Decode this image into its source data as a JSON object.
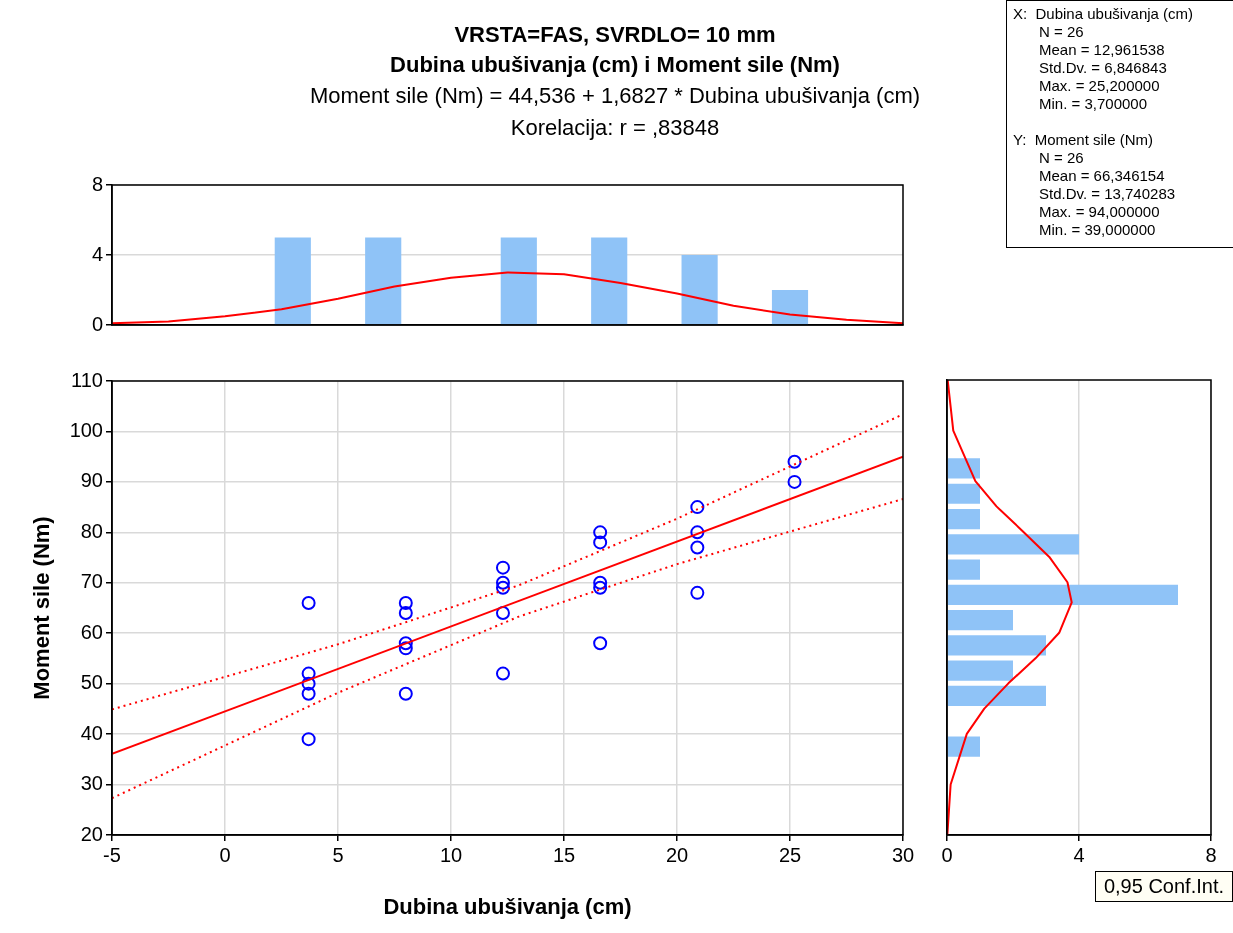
{
  "chart_data": [
    {
      "type": "bar",
      "title": "VRSTA=FAS, SVRDLO= 10 mm\nDubina ubušivanja (cm) i Moment sile (Nm)",
      "subtitle": "Moment sile (Nm) = 44,536 + 1,6827 * Dubina ubušivanja (cm)\nKorelacija: r = ,83848",
      "x": [
        3,
        7,
        13,
        17,
        21,
        25
      ],
      "values": [
        5,
        5,
        5,
        5,
        4,
        2
      ],
      "color": "#8fc3f7",
      "series": [
        {
          "type": "line",
          "color": "#ff0000",
          "marker": "none",
          "x": [
            -5,
            -2.5,
            0,
            2.5,
            5,
            7.5,
            10,
            12.5,
            15,
            17.5,
            20,
            22.5,
            25,
            27.5,
            30
          ],
          "values": [
            0.1,
            0.2,
            0.5,
            0.9,
            1.5,
            2.2,
            2.7,
            3.0,
            2.9,
            2.4,
            1.8,
            1.1,
            0.6,
            0.3,
            0.1
          ]
        }
      ],
      "xlim": [
        -5,
        30
      ],
      "xticks": [
        -5,
        0,
        5,
        10,
        15,
        20,
        25,
        30
      ],
      "ylim": [
        0,
        8
      ],
      "yticks": [
        0,
        4,
        8
      ],
      "tick_labels": "y",
      "grid": "y",
      "legend": false
    },
    {
      "type": "other",
      "annotations": [
        "X:  Dubina ubušivanja (cm)",
        "N = 26",
        "Mean = 12,961538",
        "Std.Dv. = 6,846843",
        "Max. = 25,200000",
        "Min. = 3,700000",
        "Y:  Moment sile (Nm)",
        "N = 26",
        "Mean = 66,346154",
        "Std.Dv. = 13,740283",
        "Max. = 94,000000",
        "Min. = 39,000000"
      ]
    },
    {
      "type": "scatter",
      "xlabel": "Dubina ubušivanja (cm)",
      "ylabel": "Moment sile (Nm)",
      "series": [
        {
          "type": "scatter",
          "color": "#0000ff",
          "marker": "circle",
          "x": [
            3.7,
            3.7,
            3.7,
            3.7,
            3.7,
            8,
            8,
            8,
            8,
            8,
            12.3,
            12.3,
            12.3,
            12.3,
            12.3,
            16.6,
            16.6,
            16.6,
            16.6,
            16.6,
            20.9,
            20.9,
            20.9,
            20.9,
            25.2,
            25.2
          ],
          "values": [
            66,
            52,
            50,
            48,
            39,
            66,
            64,
            58,
            57,
            48,
            73,
            70,
            69,
            64,
            52,
            80,
            78,
            70,
            69,
            58,
            85,
            80,
            77,
            68,
            94,
            90
          ]
        },
        {
          "type": "line",
          "color": "#ff0000",
          "marker": "none",
          "line_style": "solid",
          "x": [
            -5,
            30
          ],
          "values": [
            36.1,
            95.0
          ]
        },
        {
          "type": "line",
          "color": "#ff0000",
          "marker": "none",
          "line_style": "dotted",
          "x": [
            -5,
            5,
            13,
            20,
            30
          ],
          "values": [
            44.9,
            57.8,
            69.5,
            82.7,
            103.4
          ]
        },
        {
          "type": "line",
          "color": "#ff0000",
          "marker": "none",
          "line_style": "dotted",
          "x": [
            -5,
            5,
            13,
            20,
            30
          ],
          "values": [
            27.3,
            48.2,
            63.3,
            73.7,
            86.6
          ]
        }
      ],
      "xlim": [
        -5,
        30
      ],
      "xticks": [
        -5,
        0,
        5,
        10,
        15,
        20,
        25,
        30
      ],
      "ylim": [
        20,
        110
      ],
      "yticks": [
        20,
        30,
        40,
        50,
        60,
        70,
        80,
        90,
        100,
        110
      ],
      "grid": true,
      "legend": false
    },
    {
      "type": "histogram",
      "orientation": "horizontal",
      "bins": [
        35,
        40,
        45,
        50,
        55,
        60,
        65,
        70,
        75,
        80,
        85,
        90,
        95
      ],
      "values": [
        1,
        0,
        3,
        2,
        3,
        2,
        7,
        1,
        4,
        1,
        1,
        1
      ],
      "color": "#8fc3f7",
      "series": [
        {
          "type": "line",
          "color": "#ff0000",
          "marker": "none",
          "x": [
            20,
            30,
            40,
            45,
            50,
            55,
            60,
            66,
            70,
            75,
            80,
            85,
            90,
            100,
            110
          ],
          "values": [
            0.01,
            0.11,
            0.6,
            1.13,
            1.86,
            2.69,
            3.4,
            3.78,
            3.65,
            3.1,
            2.31,
            1.5,
            0.86,
            0.19,
            0.02
          ]
        }
      ],
      "xlim": [
        0,
        8
      ],
      "xticks": [
        0,
        4,
        8
      ],
      "ylim": [
        20,
        110
      ],
      "yticks": [
        20,
        30,
        40,
        50,
        60,
        70,
        80,
        90,
        100,
        110
      ],
      "tick_labels": "x",
      "grid": "x",
      "legend": false,
      "annotations": [
        "0,95 Conf.Int."
      ]
    }
  ]
}
